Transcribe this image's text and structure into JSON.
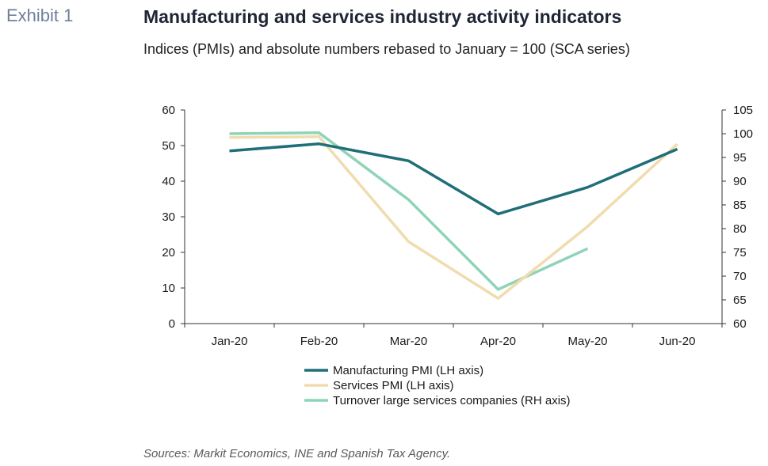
{
  "exhibit_label": "Exhibit 1",
  "title": "Manufacturing and services industry activity indicators",
  "subtitle": "Indices (PMIs) and absolute numbers rebased to January = 100 (SCA series)",
  "source": "Sources: Markit Economics, INE and Spanish Tax Agency.",
  "chart_data": {
    "type": "line",
    "categories": [
      "Jan-20",
      "Feb-20",
      "Mar-20",
      "Apr-20",
      "May-20",
      "Jun-20"
    ],
    "y_left": {
      "lim": [
        0,
        60
      ],
      "ticks": [
        0,
        10,
        20,
        30,
        40,
        50,
        60
      ]
    },
    "y_right": {
      "lim": [
        60,
        105
      ],
      "ticks": [
        60,
        65,
        70,
        75,
        80,
        85,
        90,
        95,
        100,
        105
      ]
    },
    "grid": false,
    "legend_position": "bottom",
    "series": [
      {
        "name": "Manufacturing PMI (LH axis)",
        "axis": "left",
        "color": "#1f6e78",
        "values": [
          48.5,
          50.5,
          45.7,
          30.8,
          38.3,
          49.0
        ]
      },
      {
        "name": "Services PMI (LH axis)",
        "axis": "left",
        "color": "#f0dcae",
        "values": [
          52.3,
          52.5,
          23.0,
          7.1,
          27.3,
          50.4
        ]
      },
      {
        "name": "Turnover large services companies (RH axis)",
        "axis": "right",
        "color": "#8fd3b8",
        "values": [
          100.0,
          100.2,
          86.1,
          67.2,
          75.8,
          null
        ]
      }
    ]
  }
}
